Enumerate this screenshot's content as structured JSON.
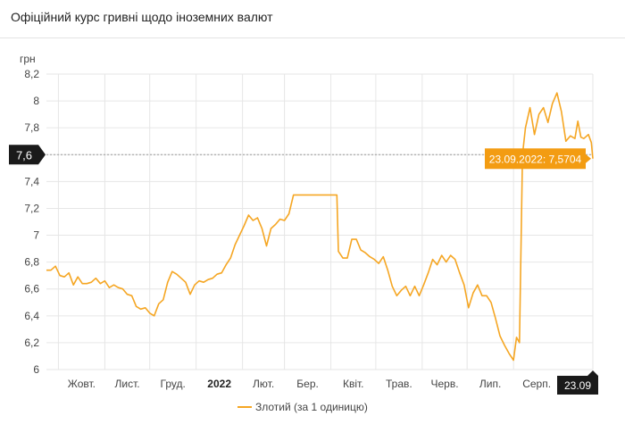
{
  "header": {
    "title": "Офіційний курс гривні щодо іноземних валют"
  },
  "colors": {
    "series": "#f5a623",
    "tooltip_bg": "#f39c12",
    "badge_bg": "#1a1a1a",
    "grid": "#e6e6e6",
    "crosshair": "#999999"
  },
  "chart_data": {
    "type": "line",
    "ylabel": "грн",
    "ylim": [
      6,
      8.2
    ],
    "yticks": [
      6,
      6.2,
      6.4,
      6.6,
      6.8,
      7,
      7.2,
      7.4,
      7.6,
      7.8,
      8,
      8.2
    ],
    "ytick_labels": [
      "6",
      "6,2",
      "6,4",
      "6,6",
      "6,8",
      "7",
      "7,2",
      "7,4",
      "",
      "7,8",
      "8",
      "8,2"
    ],
    "x_start": "2021-09-23",
    "x_end": "2022-09-23",
    "xticks": [
      {
        "date": "2021-10-01",
        "label": "Жовт.",
        "bold": false
      },
      {
        "date": "2021-11-01",
        "label": "Лист.",
        "bold": false
      },
      {
        "date": "2021-12-01",
        "label": "Груд.",
        "bold": false
      },
      {
        "date": "2022-01-01",
        "label": "2022",
        "bold": true
      },
      {
        "date": "2022-02-01",
        "label": "Лют.",
        "bold": false
      },
      {
        "date": "2022-03-01",
        "label": "Бер.",
        "bold": false
      },
      {
        "date": "2022-04-01",
        "label": "Квіт.",
        "bold": false
      },
      {
        "date": "2022-05-01",
        "label": "Трав.",
        "bold": false
      },
      {
        "date": "2022-06-01",
        "label": "Черв.",
        "bold": false
      },
      {
        "date": "2022-07-01",
        "label": "Лип.",
        "bold": false
      },
      {
        "date": "2022-08-01",
        "label": "Серп.",
        "bold": false
      }
    ],
    "series": [
      {
        "name": "Злотий (за 1 одиницю)",
        "points": [
          [
            "2021-09-23",
            6.74
          ],
          [
            "2021-09-26",
            6.74
          ],
          [
            "2021-09-29",
            6.77
          ],
          [
            "2021-10-02",
            6.7
          ],
          [
            "2021-10-05",
            6.69
          ],
          [
            "2021-10-08",
            6.72
          ],
          [
            "2021-10-11",
            6.63
          ],
          [
            "2021-10-14",
            6.69
          ],
          [
            "2021-10-17",
            6.64
          ],
          [
            "2021-10-20",
            6.64
          ],
          [
            "2021-10-23",
            6.65
          ],
          [
            "2021-10-26",
            6.68
          ],
          [
            "2021-10-29",
            6.64
          ],
          [
            "2021-11-01",
            6.66
          ],
          [
            "2021-11-04",
            6.61
          ],
          [
            "2021-11-07",
            6.63
          ],
          [
            "2021-11-10",
            6.61
          ],
          [
            "2021-11-13",
            6.6
          ],
          [
            "2021-11-16",
            6.56
          ],
          [
            "2021-11-19",
            6.55
          ],
          [
            "2021-11-22",
            6.47
          ],
          [
            "2021-11-25",
            6.45
          ],
          [
            "2021-11-28",
            6.46
          ],
          [
            "2021-12-01",
            6.42
          ],
          [
            "2021-12-04",
            6.4
          ],
          [
            "2021-12-07",
            6.49
          ],
          [
            "2021-12-10",
            6.52
          ],
          [
            "2021-12-13",
            6.65
          ],
          [
            "2021-12-16",
            6.73
          ],
          [
            "2021-12-19",
            6.71
          ],
          [
            "2021-12-22",
            6.68
          ],
          [
            "2021-12-25",
            6.65
          ],
          [
            "2021-12-28",
            6.56
          ],
          [
            "2021-12-31",
            6.63
          ],
          [
            "2022-01-03",
            6.66
          ],
          [
            "2022-01-06",
            6.65
          ],
          [
            "2022-01-09",
            6.67
          ],
          [
            "2022-01-12",
            6.68
          ],
          [
            "2022-01-15",
            6.71
          ],
          [
            "2022-01-18",
            6.72
          ],
          [
            "2022-01-21",
            6.78
          ],
          [
            "2022-01-24",
            6.83
          ],
          [
            "2022-01-27",
            6.93
          ],
          [
            "2022-01-30",
            7.0
          ],
          [
            "2022-02-02",
            7.07
          ],
          [
            "2022-02-05",
            7.15
          ],
          [
            "2022-02-08",
            7.11
          ],
          [
            "2022-02-11",
            7.13
          ],
          [
            "2022-02-14",
            7.05
          ],
          [
            "2022-02-17",
            6.92
          ],
          [
            "2022-02-20",
            7.05
          ],
          [
            "2022-02-23",
            7.08
          ],
          [
            "2022-02-26",
            7.12
          ],
          [
            "2022-03-01",
            7.11
          ],
          [
            "2022-03-04",
            7.16
          ],
          [
            "2022-03-07",
            7.3
          ],
          [
            "2022-03-20",
            7.3
          ],
          [
            "2022-04-02",
            7.3
          ],
          [
            "2022-04-05",
            7.3
          ],
          [
            "2022-04-06",
            6.88
          ],
          [
            "2022-04-09",
            6.83
          ],
          [
            "2022-04-12",
            6.83
          ],
          [
            "2022-04-15",
            6.97
          ],
          [
            "2022-04-18",
            6.97
          ],
          [
            "2022-04-21",
            6.89
          ],
          [
            "2022-04-24",
            6.87
          ],
          [
            "2022-04-27",
            6.84
          ],
          [
            "2022-04-30",
            6.82
          ],
          [
            "2022-05-03",
            6.79
          ],
          [
            "2022-05-06",
            6.84
          ],
          [
            "2022-05-09",
            6.74
          ],
          [
            "2022-05-12",
            6.62
          ],
          [
            "2022-05-15",
            6.55
          ],
          [
            "2022-05-18",
            6.59
          ],
          [
            "2022-05-21",
            6.62
          ],
          [
            "2022-05-24",
            6.55
          ],
          [
            "2022-05-27",
            6.62
          ],
          [
            "2022-05-30",
            6.55
          ],
          [
            "2022-06-02",
            6.63
          ],
          [
            "2022-06-05",
            6.72
          ],
          [
            "2022-06-08",
            6.82
          ],
          [
            "2022-06-11",
            6.78
          ],
          [
            "2022-06-14",
            6.85
          ],
          [
            "2022-06-17",
            6.8
          ],
          [
            "2022-06-20",
            6.85
          ],
          [
            "2022-06-23",
            6.82
          ],
          [
            "2022-06-26",
            6.72
          ],
          [
            "2022-06-29",
            6.63
          ],
          [
            "2022-07-02",
            6.46
          ],
          [
            "2022-07-05",
            6.57
          ],
          [
            "2022-07-08",
            6.63
          ],
          [
            "2022-07-11",
            6.55
          ],
          [
            "2022-07-14",
            6.55
          ],
          [
            "2022-07-17",
            6.5
          ],
          [
            "2022-07-20",
            6.38
          ],
          [
            "2022-07-23",
            6.25
          ],
          [
            "2022-07-26",
            6.18
          ],
          [
            "2022-07-29",
            6.12
          ],
          [
            "2022-08-01",
            6.07
          ],
          [
            "2022-08-03",
            6.24
          ],
          [
            "2022-08-05",
            6.2
          ],
          [
            "2022-08-07",
            7.6
          ],
          [
            "2022-08-09",
            7.8
          ],
          [
            "2022-08-12",
            7.95
          ],
          [
            "2022-08-15",
            7.75
          ],
          [
            "2022-08-18",
            7.9
          ],
          [
            "2022-08-21",
            7.95
          ],
          [
            "2022-08-24",
            7.84
          ],
          [
            "2022-08-27",
            7.98
          ],
          [
            "2022-08-30",
            8.06
          ],
          [
            "2022-09-02",
            7.92
          ],
          [
            "2022-09-05",
            7.7
          ],
          [
            "2022-09-08",
            7.74
          ],
          [
            "2022-09-11",
            7.72
          ],
          [
            "2022-09-13",
            7.85
          ],
          [
            "2022-09-15",
            7.73
          ],
          [
            "2022-09-17",
            7.72
          ],
          [
            "2022-09-20",
            7.75
          ],
          [
            "2022-09-22",
            7.69
          ],
          [
            "2022-09-23",
            7.5704
          ]
        ]
      }
    ],
    "crosshair": {
      "y_label": "7,6",
      "x_label": "23.09",
      "tooltip": "23.09.2022: 7,5704"
    },
    "legend_position": "bottom-center"
  }
}
